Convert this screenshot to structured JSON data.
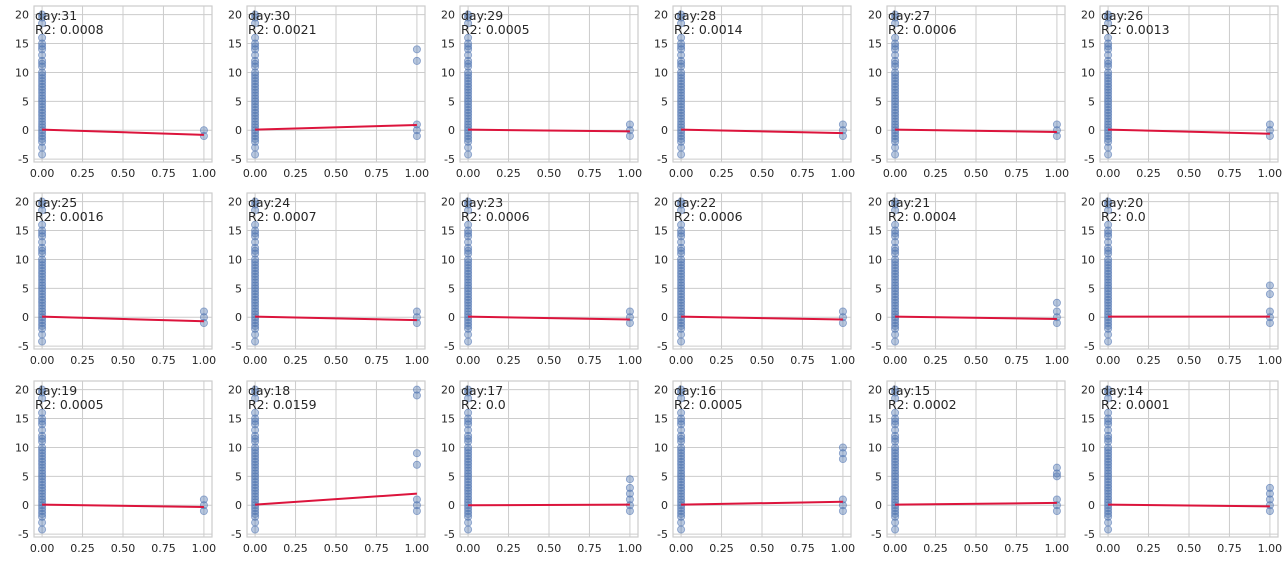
{
  "chart_data": {
    "type": "scatter",
    "layout": {
      "rows": 3,
      "cols": 6
    },
    "xlim": [
      -0.05,
      1.05
    ],
    "ylim": [
      -5.5,
      21.5
    ],
    "xticks": [
      "0.00",
      "0.25",
      "0.50",
      "0.75",
      "1.00"
    ],
    "yticks": [
      "-5",
      "0",
      "5",
      "10",
      "15",
      "20"
    ],
    "grid": true,
    "colors": {
      "points": "#4c72b0",
      "fit_line": "#dc143c",
      "grid": "#cccccc",
      "axes": "#cccccc"
    },
    "panels": [
      {
        "label": "day:31",
        "r2": "R2: 0.0008",
        "fit": [
          0.1,
          -0.8
        ],
        "x1_points": [
          0,
          -1
        ]
      },
      {
        "label": "day:30",
        "r2": "R2: 0.0021",
        "fit": [
          0.1,
          0.9
        ],
        "x1_points": [
          14,
          12,
          1,
          0,
          -1
        ]
      },
      {
        "label": "day:29",
        "r2": "R2: 0.0005",
        "fit": [
          0.1,
          -0.2
        ],
        "x1_points": [
          1,
          0,
          -1
        ]
      },
      {
        "label": "day:28",
        "r2": "R2: 0.0014",
        "fit": [
          0.1,
          -0.5
        ],
        "x1_points": [
          1,
          0,
          -1
        ]
      },
      {
        "label": "day:27",
        "r2": "R2: 0.0006",
        "fit": [
          0.1,
          -0.3
        ],
        "x1_points": [
          1,
          0,
          -1
        ]
      },
      {
        "label": "day:26",
        "r2": "R2: 0.0013",
        "fit": [
          0.1,
          -0.6
        ],
        "x1_points": [
          1,
          0,
          -1
        ]
      },
      {
        "label": "day:25",
        "r2": "R2: 0.0016",
        "fit": [
          0.1,
          -0.7
        ],
        "x1_points": [
          1,
          0,
          -1
        ]
      },
      {
        "label": "day:24",
        "r2": "R2: 0.0007",
        "fit": [
          0.1,
          -0.5
        ],
        "x1_points": [
          1,
          0,
          -1
        ]
      },
      {
        "label": "day:23",
        "r2": "R2: 0.0006",
        "fit": [
          0.1,
          -0.4
        ],
        "x1_points": [
          1,
          0,
          -1
        ]
      },
      {
        "label": "day:22",
        "r2": "R2: 0.0006",
        "fit": [
          0.1,
          -0.4
        ],
        "x1_points": [
          1,
          0,
          -1
        ]
      },
      {
        "label": "day:21",
        "r2": "R2: 0.0004",
        "fit": [
          0.1,
          -0.3
        ],
        "x1_points": [
          2.5,
          1,
          0,
          -1
        ]
      },
      {
        "label": "day:20",
        "r2": "R2: 0.0",
        "fit": [
          0.1,
          0.1
        ],
        "x1_points": [
          5.5,
          4,
          1,
          0,
          -1
        ]
      },
      {
        "label": "day:19",
        "r2": "R2: 0.0005",
        "fit": [
          0.1,
          -0.3
        ],
        "x1_points": [
          1,
          0,
          -1
        ]
      },
      {
        "label": "day:18",
        "r2": "R2: 0.0159",
        "fit": [
          0.1,
          2.0
        ],
        "x1_points": [
          20,
          19,
          9,
          7,
          1,
          0,
          -1
        ]
      },
      {
        "label": "day:17",
        "r2": "R2: 0.0",
        "fit": [
          0.0,
          0.1
        ],
        "x1_points": [
          4.5,
          3,
          2,
          1,
          0,
          -1
        ]
      },
      {
        "label": "day:16",
        "r2": "R2: 0.0005",
        "fit": [
          0.1,
          0.6
        ],
        "x1_points": [
          10,
          9,
          8,
          1,
          0,
          -1
        ]
      },
      {
        "label": "day:15",
        "r2": "R2: 0.0002",
        "fit": [
          0.1,
          0.4
        ],
        "x1_points": [
          6.5,
          5.5,
          5,
          1,
          0,
          -1
        ]
      },
      {
        "label": "day:14",
        "r2": "R2: 0.0001",
        "fit": [
          0.1,
          -0.2
        ],
        "x1_points": [
          3,
          2,
          1,
          0,
          -1
        ]
      }
    ],
    "x0_points": [
      20,
      19.5,
      18.5,
      16,
      15,
      14.5,
      14,
      13,
      12,
      11.5,
      11,
      10,
      9.5,
      9,
      8.5,
      8,
      7.5,
      7,
      6.5,
      6,
      5.5,
      5,
      4.5,
      4,
      3.5,
      3,
      2.5,
      2,
      1.5,
      1,
      0.5,
      0,
      -0.5,
      -1,
      -1.5,
      -2,
      -3,
      -4.2
    ]
  }
}
